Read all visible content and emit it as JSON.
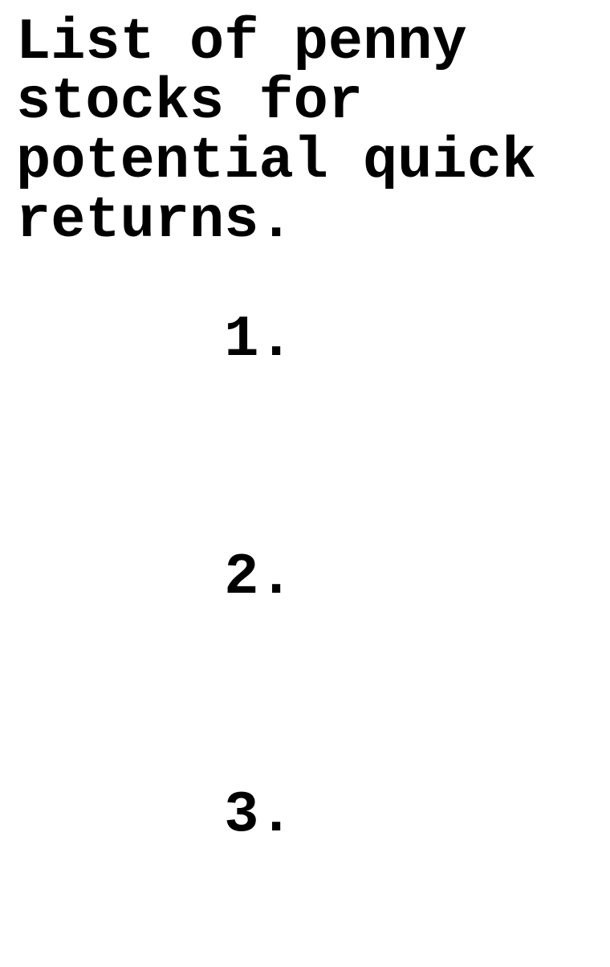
{
  "document": {
    "heading": "List of penny stocks for potential quick returns.",
    "items": [
      {
        "label": "1.",
        "text": ""
      },
      {
        "label": "2.",
        "text": ""
      },
      {
        "label": "3.",
        "text": ""
      }
    ],
    "colors": {
      "background": "#ffffff",
      "text": "#000000"
    }
  }
}
